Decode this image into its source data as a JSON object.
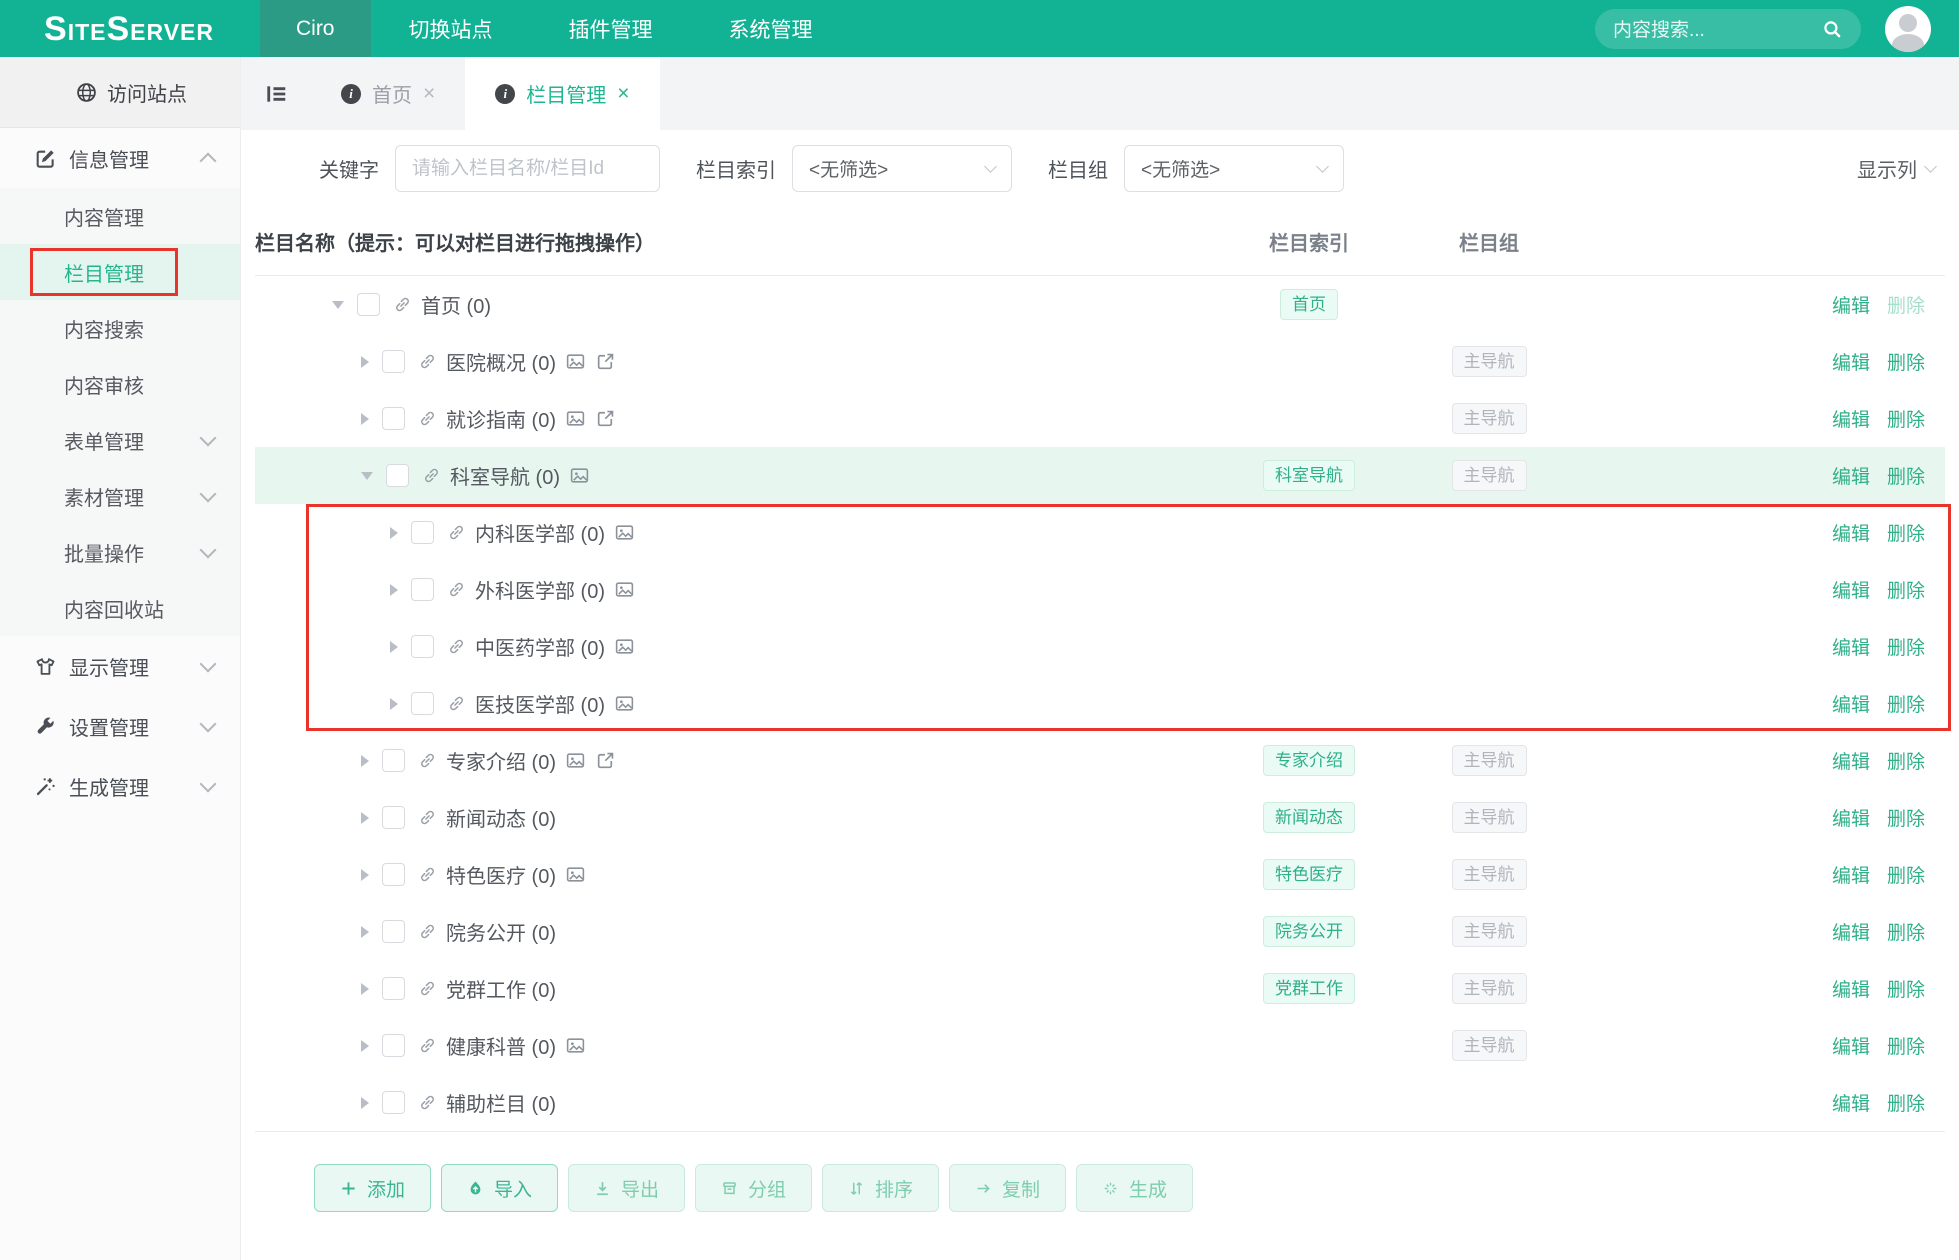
{
  "colors": {
    "accent": "#12b294",
    "accent_dark": "#2b9b85",
    "active_text": "#1fb592",
    "badge_teal_text": "#2fb089",
    "badge_teal_bg": "#eafaf4",
    "badge_gray_text": "#b0b5bb",
    "row_highlight": "#e7f7f0",
    "annotation_red": "#e8342a"
  },
  "header": {
    "logo": {
      "s1": "S",
      "t1": "ITE",
      "s2": "S",
      "t2": "ERVER"
    },
    "site_tab": "Ciro",
    "nav_items": [
      {
        "id": "switch-site",
        "label": "切换站点"
      },
      {
        "id": "plugin-management",
        "label": "插件管理"
      },
      {
        "id": "system-management",
        "label": "系统管理"
      }
    ],
    "search_placeholder": "内容搜索..."
  },
  "sidebar": {
    "visit_site_label": "访问站点",
    "items": [
      {
        "id": "info-management",
        "label": "信息管理",
        "level": "top",
        "icon": "edit-square",
        "chevron": "up"
      },
      {
        "id": "content-management",
        "label": "内容管理",
        "level": "sub"
      },
      {
        "id": "channel-management",
        "label": "栏目管理",
        "level": "sub",
        "active": true,
        "annotated": true
      },
      {
        "id": "content-search",
        "label": "内容搜索",
        "level": "sub"
      },
      {
        "id": "content-review",
        "label": "内容审核",
        "level": "sub"
      },
      {
        "id": "form-management",
        "label": "表单管理",
        "level": "sub",
        "chevron": "down"
      },
      {
        "id": "material-management",
        "label": "素材管理",
        "level": "sub",
        "chevron": "down"
      },
      {
        "id": "batch-operations",
        "label": "批量操作",
        "level": "sub",
        "chevron": "down"
      },
      {
        "id": "content-recycle-bin",
        "label": "内容回收站",
        "level": "sub"
      },
      {
        "id": "display-management",
        "label": "显示管理",
        "level": "top",
        "icon": "tshirt",
        "chevron": "down"
      },
      {
        "id": "settings-management",
        "label": "设置管理",
        "level": "top",
        "icon": "wrench",
        "chevron": "down"
      },
      {
        "id": "generate-management",
        "label": "生成管理",
        "level": "top",
        "icon": "magic-wand",
        "chevron": "down"
      }
    ]
  },
  "tabs": [
    {
      "id": "home",
      "label": "首页",
      "active": false
    },
    {
      "id": "channel-management",
      "label": "栏目管理",
      "active": true
    }
  ],
  "filters": {
    "keyword_label": "关键字",
    "keyword_placeholder": "请输入栏目名称/栏目Id",
    "index_label": "栏目索引",
    "index_value": "<无筛选>",
    "group_label": "栏目组",
    "group_value": "<无筛选>",
    "columns_label": "显示列"
  },
  "table": {
    "name_header": "栏目名称（提示：可以对栏目进行拖拽操作）",
    "index_header": "栏目索引",
    "group_header": "栏目组",
    "edit_label": "编辑",
    "delete_label": "删除",
    "rows": [
      {
        "name": "首页",
        "count": "(0)",
        "level": 0,
        "expander": "down",
        "icons": [
          "link"
        ],
        "index_badge": "首页",
        "group_badge": null,
        "delete_disabled": true
      },
      {
        "name": "医院概况",
        "count": "(0)",
        "level": 1,
        "expander": "right",
        "icons": [
          "link",
          "image",
          "external"
        ],
        "index_badge": null,
        "group_badge": "主导航"
      },
      {
        "name": "就诊指南",
        "count": "(0)",
        "level": 1,
        "expander": "right",
        "icons": [
          "link",
          "image",
          "external"
        ],
        "index_badge": null,
        "group_badge": "主导航"
      },
      {
        "name": "科室导航",
        "count": "(0)",
        "level": 1,
        "expander": "down",
        "icons": [
          "link",
          "image"
        ],
        "index_badge": "科室导航",
        "group_badge": "主导航",
        "highlighted": true
      },
      {
        "name": "内科医学部",
        "count": "(0)",
        "level": 2,
        "expander": "right",
        "icons": [
          "link",
          "image"
        ],
        "index_badge": null,
        "group_badge": null,
        "annotated": true
      },
      {
        "name": "外科医学部",
        "count": "(0)",
        "level": 2,
        "expander": "right",
        "icons": [
          "link",
          "image"
        ],
        "index_badge": null,
        "group_badge": null,
        "annotated": true
      },
      {
        "name": "中医药学部",
        "count": "(0)",
        "level": 2,
        "expander": "right",
        "icons": [
          "link",
          "image"
        ],
        "index_badge": null,
        "group_badge": null,
        "annotated": true
      },
      {
        "name": "医技医学部",
        "count": "(0)",
        "level": 2,
        "expander": "right",
        "icons": [
          "link",
          "image"
        ],
        "index_badge": null,
        "group_badge": null,
        "annotated": true
      },
      {
        "name": "专家介绍",
        "count": "(0)",
        "level": 1,
        "expander": "right",
        "icons": [
          "link",
          "image",
          "external"
        ],
        "index_badge": "专家介绍",
        "group_badge": "主导航"
      },
      {
        "name": "新闻动态",
        "count": "(0)",
        "level": 1,
        "expander": "right",
        "icons": [
          "link"
        ],
        "index_badge": "新闻动态",
        "group_badge": "主导航"
      },
      {
        "name": "特色医疗",
        "count": "(0)",
        "level": 1,
        "expander": "right",
        "icons": [
          "link",
          "image"
        ],
        "index_badge": "特色医疗",
        "group_badge": "主导航"
      },
      {
        "name": "院务公开",
        "count": "(0)",
        "level": 1,
        "expander": "right",
        "icons": [
          "link"
        ],
        "index_badge": "院务公开",
        "group_badge": "主导航"
      },
      {
        "name": "党群工作",
        "count": "(0)",
        "level": 1,
        "expander": "right",
        "icons": [
          "link"
        ],
        "index_badge": "党群工作",
        "group_badge": "主导航"
      },
      {
        "name": "健康科普",
        "count": "(0)",
        "level": 1,
        "expander": "right",
        "icons": [
          "link",
          "image"
        ],
        "index_badge": null,
        "group_badge": "主导航"
      },
      {
        "name": "辅助栏目",
        "count": "(0)",
        "level": 1,
        "expander": "right",
        "icons": [
          "link"
        ],
        "index_badge": null,
        "group_badge": null
      }
    ]
  },
  "footer_buttons": [
    {
      "id": "add",
      "label": "添加",
      "icon": "plus",
      "primary": true
    },
    {
      "id": "import",
      "label": "导入",
      "icon": "upload",
      "primary": true
    },
    {
      "id": "export",
      "label": "导出",
      "icon": "download",
      "primary": false
    },
    {
      "id": "group",
      "label": "分组",
      "icon": "group-box",
      "primary": false
    },
    {
      "id": "sort",
      "label": "排序",
      "icon": "sort-arrows",
      "primary": false
    },
    {
      "id": "copy",
      "label": "复制",
      "icon": "arrow-right",
      "primary": false
    },
    {
      "id": "generate",
      "label": "生成",
      "icon": "sparkle",
      "primary": false
    }
  ]
}
